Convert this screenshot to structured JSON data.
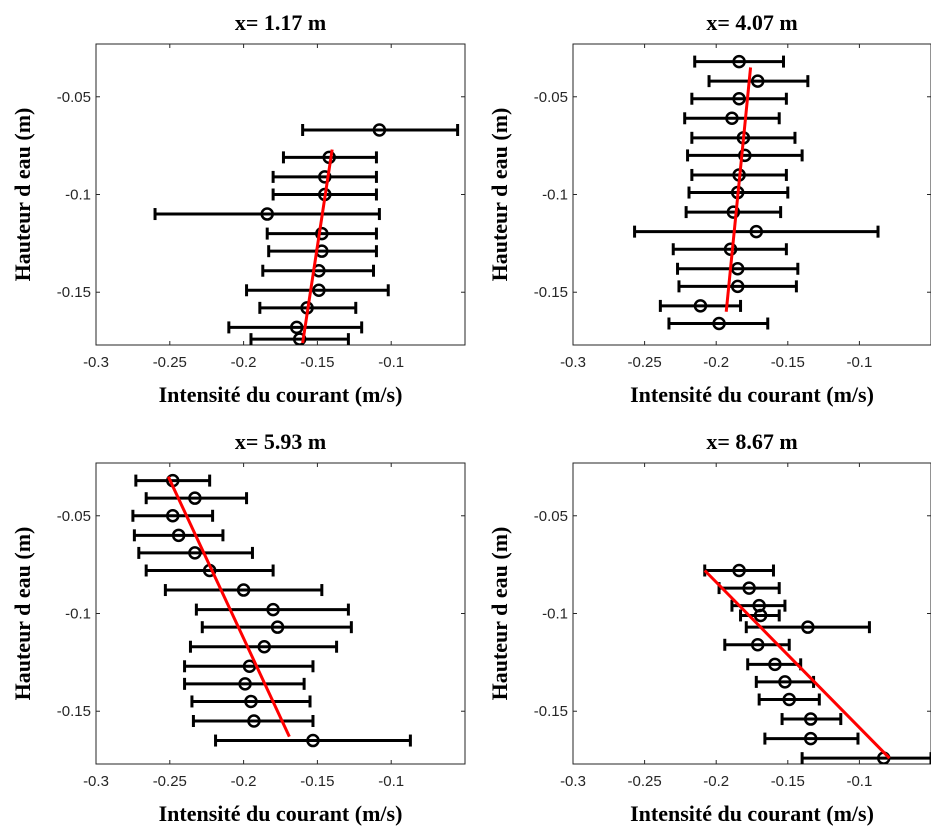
{
  "chart_data": [
    {
      "type": "errorbar-scatter",
      "title": "x= 1.17 m",
      "xlabel": "Intensité du courant (m/s)",
      "ylabel": "Hauteur d eau (m)",
      "xlim": [
        -0.3,
        -0.05
      ],
      "ylim": [
        -0.177,
        -0.023
      ],
      "xticks": [
        -0.3,
        -0.25,
        -0.2,
        -0.15,
        -0.1
      ],
      "xtick_labels": [
        "-0.3",
        "-0.25",
        "-0.2",
        "-0.15",
        "-0.1"
      ],
      "yticks": [
        -0.05,
        -0.1,
        -0.15
      ],
      "ytick_labels": [
        "-0.05",
        "-0.1",
        "-0.15"
      ],
      "points": [
        {
          "y": -0.067,
          "x": -0.108,
          "lo": -0.16,
          "hi": -0.055
        },
        {
          "y": -0.081,
          "x": -0.142,
          "lo": -0.173,
          "hi": -0.11
        },
        {
          "y": -0.091,
          "x": -0.145,
          "lo": -0.18,
          "hi": -0.11
        },
        {
          "y": -0.1,
          "x": -0.145,
          "lo": -0.18,
          "hi": -0.11
        },
        {
          "y": -0.11,
          "x": -0.184,
          "lo": -0.26,
          "hi": -0.108
        },
        {
          "y": -0.12,
          "x": -0.147,
          "lo": -0.184,
          "hi": -0.11
        },
        {
          "y": -0.129,
          "x": -0.147,
          "lo": -0.183,
          "hi": -0.11
        },
        {
          "y": -0.139,
          "x": -0.149,
          "lo": -0.187,
          "hi": -0.112
        },
        {
          "y": -0.149,
          "x": -0.149,
          "lo": -0.198,
          "hi": -0.102
        },
        {
          "y": -0.158,
          "x": -0.157,
          "lo": -0.189,
          "hi": -0.124
        },
        {
          "y": -0.168,
          "x": -0.164,
          "lo": -0.21,
          "hi": -0.12
        },
        {
          "y": -0.174,
          "x": -0.162,
          "lo": -0.195,
          "hi": -0.129
        }
      ],
      "fit_line": {
        "x": [
          -0.14,
          -0.16
        ],
        "y": [
          -0.077,
          -0.176
        ]
      }
    },
    {
      "type": "errorbar-scatter",
      "title": "x= 4.07 m",
      "xlabel": "Intensité du courant (m/s)",
      "ylabel": "Hauteur d eau (m)",
      "xlim": [
        -0.3,
        -0.05
      ],
      "ylim": [
        -0.177,
        -0.023
      ],
      "xticks": [
        -0.3,
        -0.25,
        -0.2,
        -0.15,
        -0.1
      ],
      "xtick_labels": [
        "-0.3",
        "-0.25",
        "-0.2",
        "-0.15",
        "-0.1"
      ],
      "yticks": [
        -0.05,
        -0.1,
        -0.15
      ],
      "ytick_labels": [
        "-0.05",
        "-0.1",
        "-0.15"
      ],
      "points": [
        {
          "y": -0.032,
          "x": -0.184,
          "lo": -0.215,
          "hi": -0.153
        },
        {
          "y": -0.042,
          "x": -0.171,
          "lo": -0.205,
          "hi": -0.136
        },
        {
          "y": -0.051,
          "x": -0.184,
          "lo": -0.217,
          "hi": -0.151
        },
        {
          "y": -0.061,
          "x": -0.189,
          "lo": -0.222,
          "hi": -0.156
        },
        {
          "y": -0.071,
          "x": -0.181,
          "lo": -0.217,
          "hi": -0.145
        },
        {
          "y": -0.08,
          "x": -0.18,
          "lo": -0.22,
          "hi": -0.14
        },
        {
          "y": -0.09,
          "x": -0.184,
          "lo": -0.217,
          "hi": -0.151
        },
        {
          "y": -0.099,
          "x": -0.185,
          "lo": -0.219,
          "hi": -0.15
        },
        {
          "y": -0.109,
          "x": -0.188,
          "lo": -0.221,
          "hi": -0.155
        },
        {
          "y": -0.119,
          "x": -0.172,
          "lo": -0.257,
          "hi": -0.087
        },
        {
          "y": -0.128,
          "x": -0.19,
          "lo": -0.23,
          "hi": -0.151
        },
        {
          "y": -0.138,
          "x": -0.185,
          "lo": -0.227,
          "hi": -0.143
        },
        {
          "y": -0.147,
          "x": -0.185,
          "lo": -0.226,
          "hi": -0.144
        },
        {
          "y": -0.157,
          "x": -0.211,
          "lo": -0.239,
          "hi": -0.183
        },
        {
          "y": -0.166,
          "x": -0.198,
          "lo": -0.233,
          "hi": -0.164
        }
      ],
      "fit_line": {
        "x": [
          -0.176,
          -0.193
        ],
        "y": [
          -0.035,
          -0.16
        ]
      }
    },
    {
      "type": "errorbar-scatter",
      "title": "x= 5.93 m",
      "xlabel": "Intensité du courant (m/s)",
      "ylabel": "Hauteur d eau (m)",
      "xlim": [
        -0.3,
        -0.05
      ],
      "ylim": [
        -0.177,
        -0.023
      ],
      "xticks": [
        -0.3,
        -0.25,
        -0.2,
        -0.15,
        -0.1
      ],
      "xtick_labels": [
        "-0.3",
        "-0.25",
        "-0.2",
        "-0.15",
        "-0.1"
      ],
      "yticks": [
        -0.05,
        -0.1,
        -0.15
      ],
      "ytick_labels": [
        "-0.05",
        "-0.1",
        "-0.15"
      ],
      "points": [
        {
          "y": -0.032,
          "x": -0.248,
          "lo": -0.273,
          "hi": -0.223
        },
        {
          "y": -0.041,
          "x": -0.233,
          "lo": -0.266,
          "hi": -0.198
        },
        {
          "y": -0.05,
          "x": -0.248,
          "lo": -0.275,
          "hi": -0.221
        },
        {
          "y": -0.06,
          "x": -0.244,
          "lo": -0.274,
          "hi": -0.214
        },
        {
          "y": -0.069,
          "x": -0.233,
          "lo": -0.271,
          "hi": -0.194
        },
        {
          "y": -0.078,
          "x": -0.223,
          "lo": -0.266,
          "hi": -0.18
        },
        {
          "y": -0.088,
          "x": -0.2,
          "lo": -0.253,
          "hi": -0.147
        },
        {
          "y": -0.098,
          "x": -0.18,
          "lo": -0.232,
          "hi": -0.129
        },
        {
          "y": -0.107,
          "x": -0.177,
          "lo": -0.228,
          "hi": -0.127
        },
        {
          "y": -0.117,
          "x": -0.186,
          "lo": -0.236,
          "hi": -0.137
        },
        {
          "y": -0.127,
          "x": -0.196,
          "lo": -0.24,
          "hi": -0.153
        },
        {
          "y": -0.136,
          "x": -0.199,
          "lo": -0.24,
          "hi": -0.159
        },
        {
          "y": -0.145,
          "x": -0.195,
          "lo": -0.235,
          "hi": -0.155
        },
        {
          "y": -0.155,
          "x": -0.193,
          "lo": -0.234,
          "hi": -0.153
        },
        {
          "y": -0.165,
          "x": -0.153,
          "lo": -0.219,
          "hi": -0.087
        }
      ],
      "fit_line": {
        "x": [
          -0.251,
          -0.169
        ],
        "y": [
          -0.03,
          -0.163
        ]
      }
    },
    {
      "type": "errorbar-scatter",
      "title": "x= 8.67 m",
      "xlabel": "Intensité du courant (m/s)",
      "ylabel": "Hauteur d eau (m)",
      "xlim": [
        -0.3,
        -0.05
      ],
      "ylim": [
        -0.177,
        -0.023
      ],
      "xticks": [
        -0.3,
        -0.25,
        -0.2,
        -0.15,
        -0.1
      ],
      "xtick_labels": [
        "-0.3",
        "-0.25",
        "-0.2",
        "-0.15",
        "-0.1"
      ],
      "yticks": [
        -0.05,
        -0.1,
        -0.15
      ],
      "ytick_labels": [
        "-0.05",
        "-0.1",
        "-0.15"
      ],
      "points": [
        {
          "y": -0.078,
          "x": -0.184,
          "lo": -0.208,
          "hi": -0.16
        },
        {
          "y": -0.087,
          "x": -0.177,
          "lo": -0.198,
          "hi": -0.156
        },
        {
          "y": -0.096,
          "x": -0.17,
          "lo": -0.189,
          "hi": -0.152
        },
        {
          "y": -0.101,
          "x": -0.169,
          "lo": -0.183,
          "hi": -0.156
        },
        {
          "y": -0.107,
          "x": -0.136,
          "lo": -0.179,
          "hi": -0.093
        },
        {
          "y": -0.116,
          "x": -0.171,
          "lo": -0.194,
          "hi": -0.149
        },
        {
          "y": -0.126,
          "x": -0.159,
          "lo": -0.178,
          "hi": -0.141
        },
        {
          "y": -0.135,
          "x": -0.152,
          "lo": -0.172,
          "hi": -0.132
        },
        {
          "y": -0.144,
          "x": -0.149,
          "lo": -0.17,
          "hi": -0.128
        },
        {
          "y": -0.154,
          "x": -0.134,
          "lo": -0.154,
          "hi": -0.113
        },
        {
          "y": -0.164,
          "x": -0.134,
          "lo": -0.166,
          "hi": -0.101
        },
        {
          "y": -0.174,
          "x": -0.083,
          "lo": -0.14,
          "hi": -0.05
        }
      ],
      "fit_line": {
        "x": [
          -0.208,
          -0.079
        ],
        "y": [
          -0.078,
          -0.174
        ]
      }
    }
  ]
}
